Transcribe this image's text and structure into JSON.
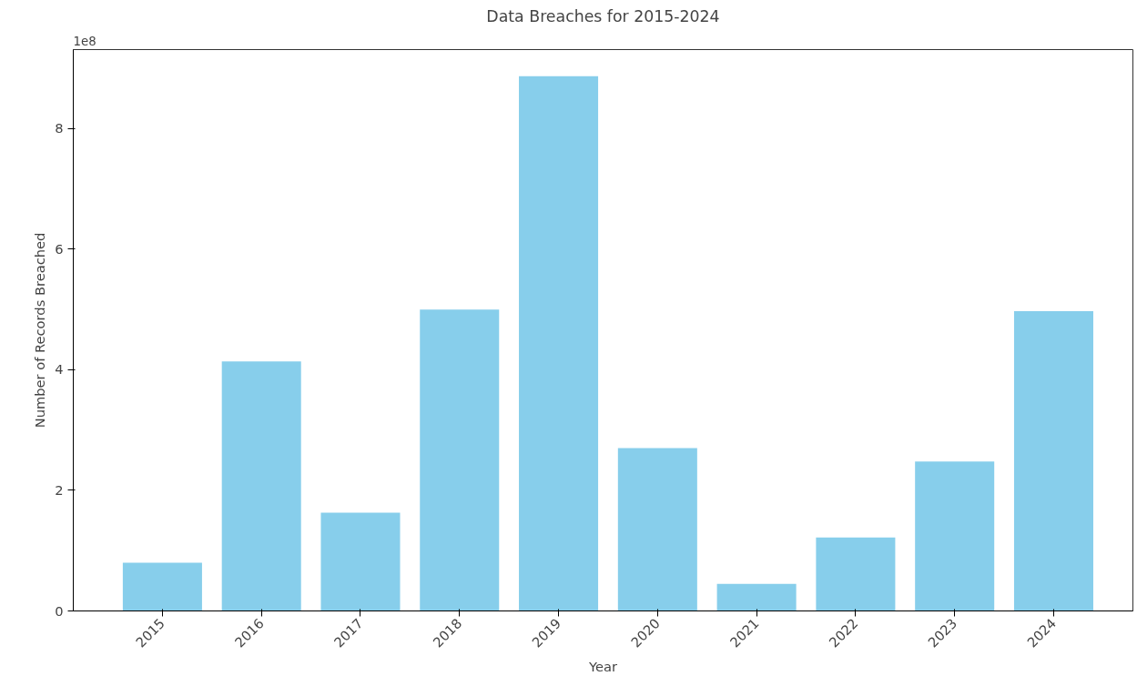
{
  "chart_data": {
    "type": "bar",
    "title": "Data Breaches for 2015-2024",
    "xlabel": "Year",
    "ylabel": "Number of Records Breached",
    "categories": [
      "2015",
      "2016",
      "2017",
      "2018",
      "2019",
      "2020",
      "2021",
      "2022",
      "2023",
      "2024"
    ],
    "values": [
      0.8,
      4.14,
      1.63,
      5.0,
      8.87,
      2.7,
      0.45,
      1.22,
      2.48,
      4.97
    ],
    "color": "#87ceeb",
    "ylim": [
      0,
      9.31
    ],
    "yticks": [
      0,
      2,
      4,
      6,
      8
    ],
    "annotations": [
      "1e8"
    ],
    "grid": false
  }
}
